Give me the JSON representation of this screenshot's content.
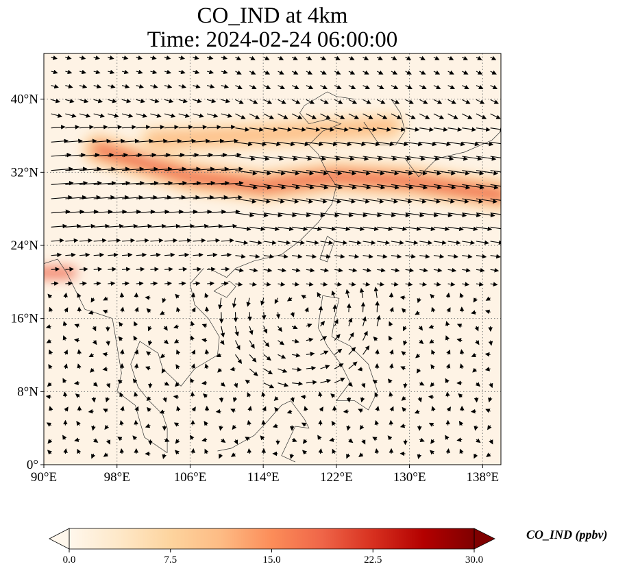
{
  "title": {
    "line1": "CO_IND at 4km",
    "line2": "Time: 2024-02-24 06:00:00"
  },
  "map": {
    "projection": "PlateCarree",
    "lon_range": [
      90,
      140
    ],
    "lat_range": [
      0,
      45
    ],
    "lon_ticks": [
      {
        "value": 90,
        "label": "90°E"
      },
      {
        "value": 98,
        "label": "98°E"
      },
      {
        "value": 106,
        "label": "106°E"
      },
      {
        "value": 114,
        "label": "114°E"
      },
      {
        "value": 122,
        "label": "122°E"
      },
      {
        "value": 130,
        "label": "130°E"
      },
      {
        "value": 138,
        "label": "138°E"
      }
    ],
    "lat_ticks": [
      {
        "value": 0,
        "label": "0°"
      },
      {
        "value": 8,
        "label": "8°N"
      },
      {
        "value": 16,
        "label": "16°N"
      },
      {
        "value": 24,
        "label": "24°N"
      },
      {
        "value": 32,
        "label": "32°N"
      },
      {
        "value": 40,
        "label": "40°N"
      }
    ],
    "gridlines": "dotted",
    "field": "CO_IND",
    "overlay": "wind vectors (quiver)"
  },
  "chart_data": {
    "type": "heatmap",
    "variable": "CO_IND",
    "units": "ppbv",
    "colormap": "OrRd",
    "vmin": 0.0,
    "vmax": 30.0,
    "extend": "both",
    "plumes": [
      {
        "from_lon": 90,
        "to_lon": 93,
        "lat": 21.0,
        "peak_value": 19
      },
      {
        "from_lon": 96,
        "to_lon": 140,
        "lat_path": [
          [
            96,
            34.5
          ],
          [
            106,
            31.5
          ],
          [
            114,
            30.5
          ],
          [
            122,
            31.5
          ],
          [
            130,
            31.0
          ],
          [
            140,
            29.5
          ]
        ],
        "peak_value": 17
      },
      {
        "from_lon": 102,
        "to_lon": 128,
        "lat_path": [
          [
            102,
            35.5
          ],
          [
            112,
            36.0
          ],
          [
            120,
            36.5
          ],
          [
            128,
            37.0
          ]
        ],
        "peak_value": 10
      }
    ],
    "background_value": 1.0
  },
  "colorbar": {
    "label": "CO_IND (ppbv)",
    "ticks": [
      "0.0",
      "7.5",
      "15.0",
      "22.5",
      "30.0"
    ],
    "stops": [
      "#fff7ec",
      "#fee8c8",
      "#fdd49e",
      "#fdbb84",
      "#fc8d59",
      "#ef6548",
      "#d7301f",
      "#b30000",
      "#7f0000"
    ]
  }
}
